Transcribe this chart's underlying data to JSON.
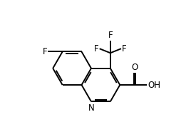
{
  "background_color": "#ffffff",
  "line_width": 1.4,
  "font_size": 8.5,
  "fig_width": 2.68,
  "fig_height": 1.78,
  "dpi": 100,
  "xlim": [
    -2.8,
    3.5
  ],
  "ylim": [
    -0.6,
    4.5
  ]
}
